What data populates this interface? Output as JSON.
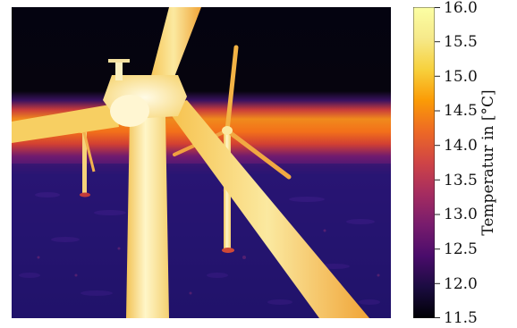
{
  "colorbar": {
    "title": "Temperatur in [°C]",
    "min": 11.5,
    "max": 16.0,
    "ticks": [
      "11.5",
      "12.0",
      "12.5",
      "13.0",
      "13.5",
      "14.0",
      "14.5",
      "15.0",
      "15.5",
      "16.0"
    ],
    "colormap": "inferno"
  }
}
